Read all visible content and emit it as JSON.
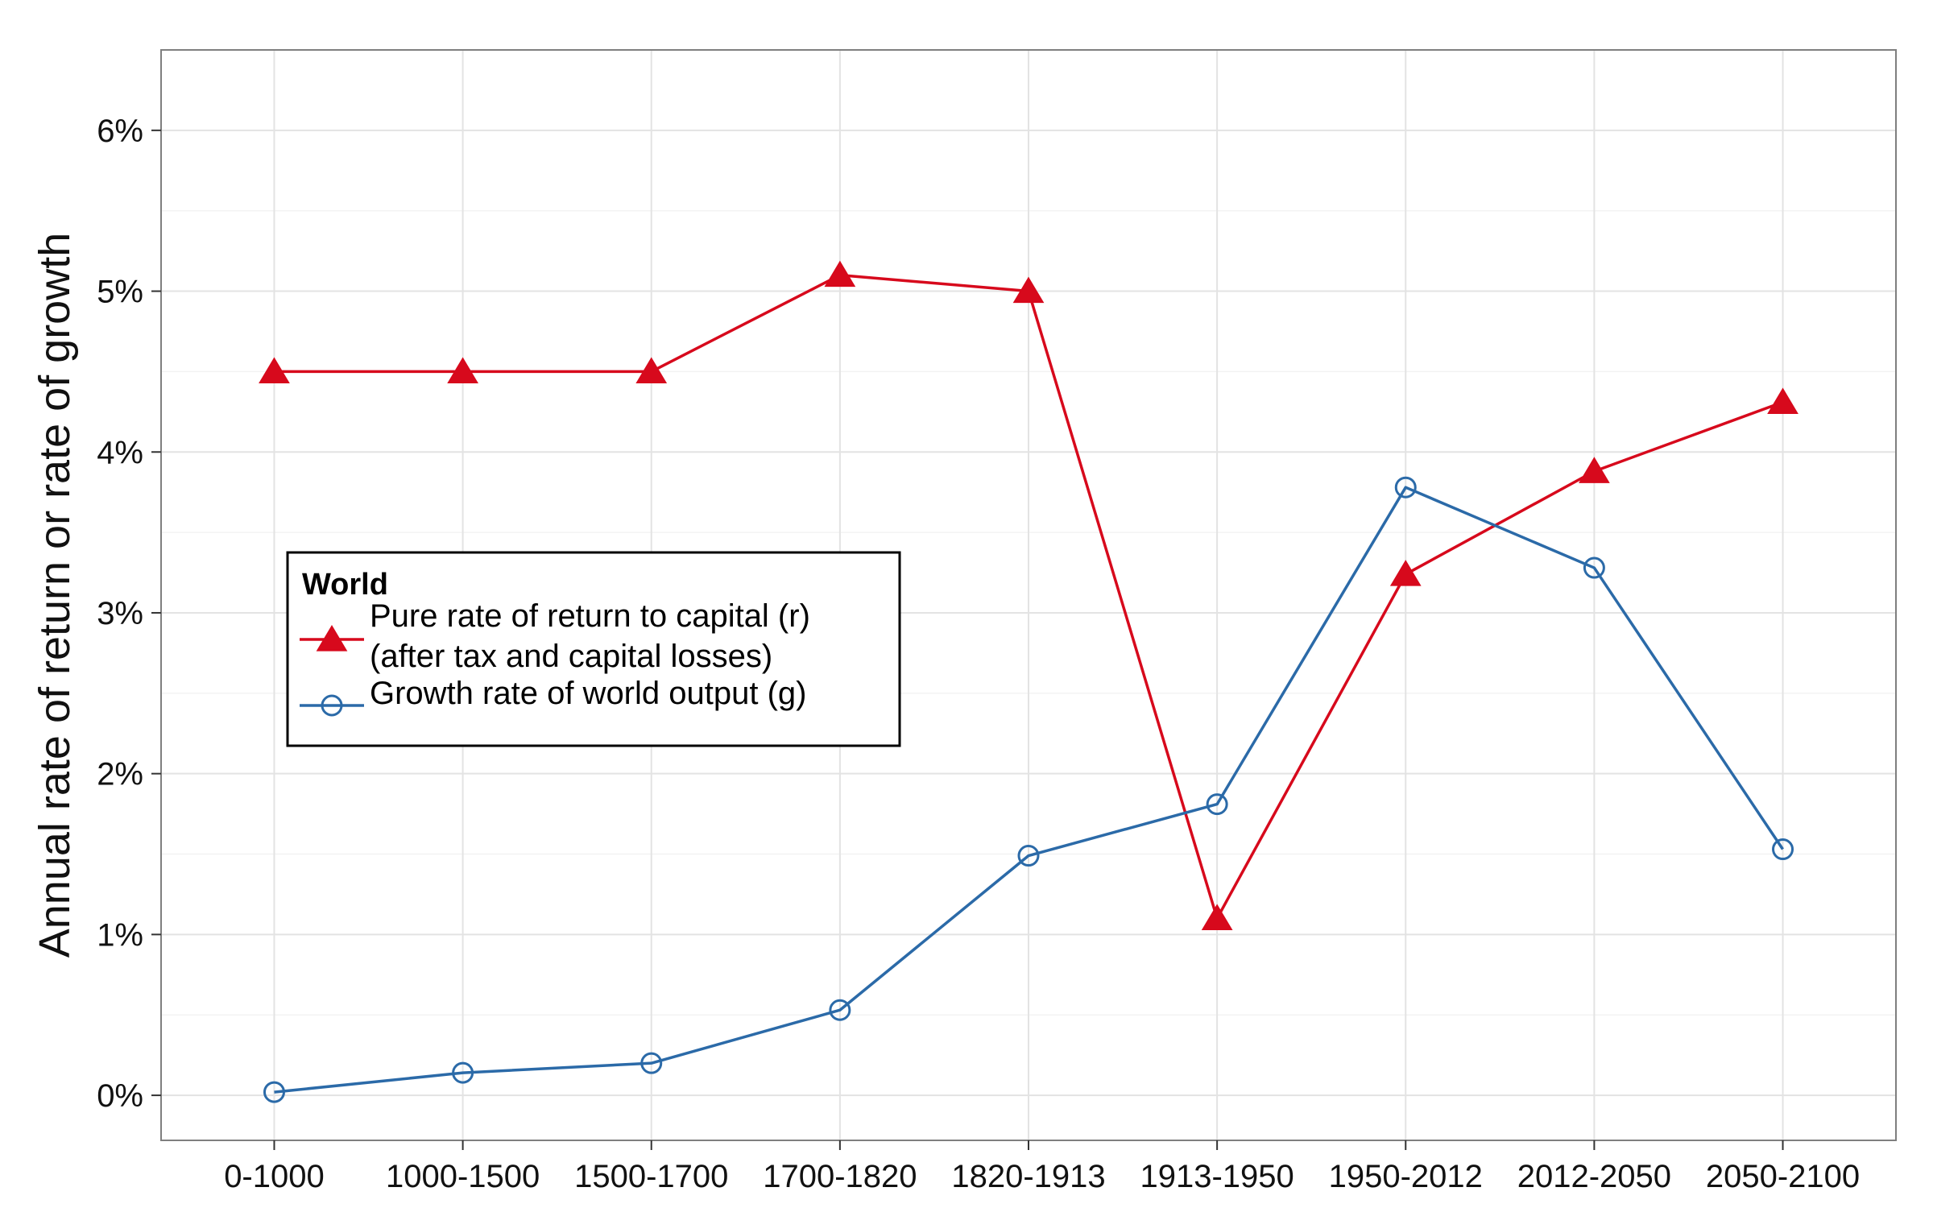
{
  "chart_data": {
    "type": "line",
    "title": "",
    "xlabel": "",
    "ylabel": "Annual rate of return or rate of growth",
    "categories": [
      "0-1000",
      "1000-1500",
      "1500-1700",
      "1700-1820",
      "1820-1913",
      "1913-1950",
      "1950-2012",
      "2012-2050",
      "2050-2100"
    ],
    "y_ticks": [
      "0%",
      "1%",
      "2%",
      "3%",
      "4%",
      "5%",
      "6%"
    ],
    "ylim": [
      -0.28,
      6.5
    ],
    "grid": true,
    "legend": {
      "placement": "left-center",
      "title": "World",
      "entries": [
        {
          "lines": [
            "Pure rate of return to capital (r)",
            "(after tax and capital losses)"
          ],
          "series": 0
        },
        {
          "lines": [
            "Growth rate of world output (g)"
          ],
          "series": 1
        }
      ]
    },
    "series": [
      {
        "name": "Pure rate of return to capital (r) (after tax and capital losses)",
        "color": "#d7091c",
        "marker": "filled-triangle",
        "values": [
          4.5,
          4.5,
          4.5,
          5.1,
          5.0,
          1.1,
          3.24,
          3.88,
          4.31
        ]
      },
      {
        "name": "Growth rate of world output (g)",
        "color": "#2b6aa8",
        "marker": "open-circle",
        "values": [
          0.02,
          0.14,
          0.2,
          0.53,
          1.49,
          1.81,
          3.78,
          3.28,
          1.53
        ]
      }
    ]
  }
}
